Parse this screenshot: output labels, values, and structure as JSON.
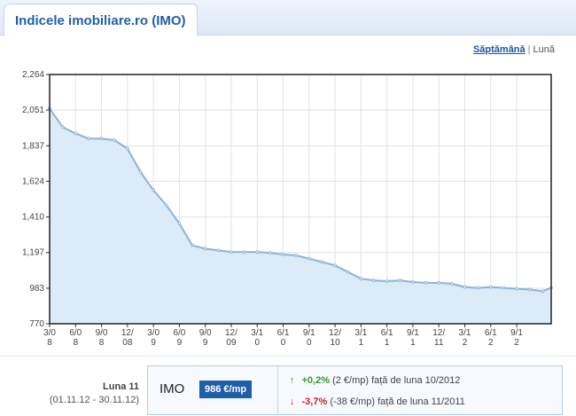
{
  "header": {
    "title": "Indicele imobiliare.ro (IMO)"
  },
  "period_switch": {
    "week": "Săptămână",
    "separator": "|",
    "month": "Lună"
  },
  "chart_data": {
    "type": "area",
    "series_color": "#8fb3d6",
    "fill_color": "#dcebf8",
    "ylim": [
      770,
      2264
    ],
    "y_ticks": [
      "2,264",
      "2,051",
      "1,837",
      "1,624",
      "1,410",
      "1,197",
      "983",
      "770"
    ],
    "y_tick_values": [
      2264,
      2051,
      1837,
      1624,
      1410,
      1197,
      983,
      770
    ],
    "x_ticks": [
      [
        "3/0",
        "8"
      ],
      [
        "6/0",
        "8"
      ],
      [
        "9/0",
        "8"
      ],
      [
        "12/",
        "08"
      ],
      [
        "3/0",
        "9"
      ],
      [
        "6/0",
        "9"
      ],
      [
        "9/0",
        "9"
      ],
      [
        "12/",
        "09"
      ],
      [
        "3/1",
        "0"
      ],
      [
        "6/1",
        "0"
      ],
      [
        "9/1",
        "0"
      ],
      [
        "12/",
        "10"
      ],
      [
        "3/1",
        "1"
      ],
      [
        "6/1",
        "1"
      ],
      [
        "9/1",
        "1"
      ],
      [
        "12/",
        "11"
      ],
      [
        "3/1",
        "2"
      ],
      [
        "6/1",
        "2"
      ],
      [
        "9/1",
        "2"
      ]
    ],
    "x": [
      0,
      0.5,
      1,
      1.5,
      2,
      2.5,
      3,
      3.5,
      4,
      4.5,
      5,
      5.5,
      6,
      6.5,
      7,
      7.5,
      8,
      8.5,
      9,
      9.5,
      10,
      10.5,
      11,
      11.5,
      12,
      12.5,
      13,
      13.5,
      14,
      14.5,
      15,
      15.5,
      16,
      16.5,
      17,
      17.5,
      18,
      18.5,
      19,
      19.33
    ],
    "values": [
      2060,
      1950,
      1910,
      1880,
      1880,
      1870,
      1820,
      1680,
      1570,
      1480,
      1370,
      1240,
      1220,
      1210,
      1200,
      1200,
      1200,
      1195,
      1185,
      1180,
      1160,
      1140,
      1120,
      1080,
      1040,
      1030,
      1025,
      1030,
      1020,
      1015,
      1015,
      1010,
      990,
      985,
      990,
      985,
      980,
      975,
      965,
      986
    ]
  },
  "footer": {
    "month_label": "Luna 11",
    "month_range": "(01.11.12 - 30.11.12)",
    "imo_label": "IMO",
    "imo_value": "986 €/mp",
    "change_up": {
      "arrow": "↑",
      "pct": "+0,2%",
      "text": "(2 €/mp) față de luna 10/2012"
    },
    "change_down": {
      "arrow": "↓",
      "pct": "-3,7%",
      "text": "(-38 €/mp) față de luna 11/2011"
    }
  }
}
